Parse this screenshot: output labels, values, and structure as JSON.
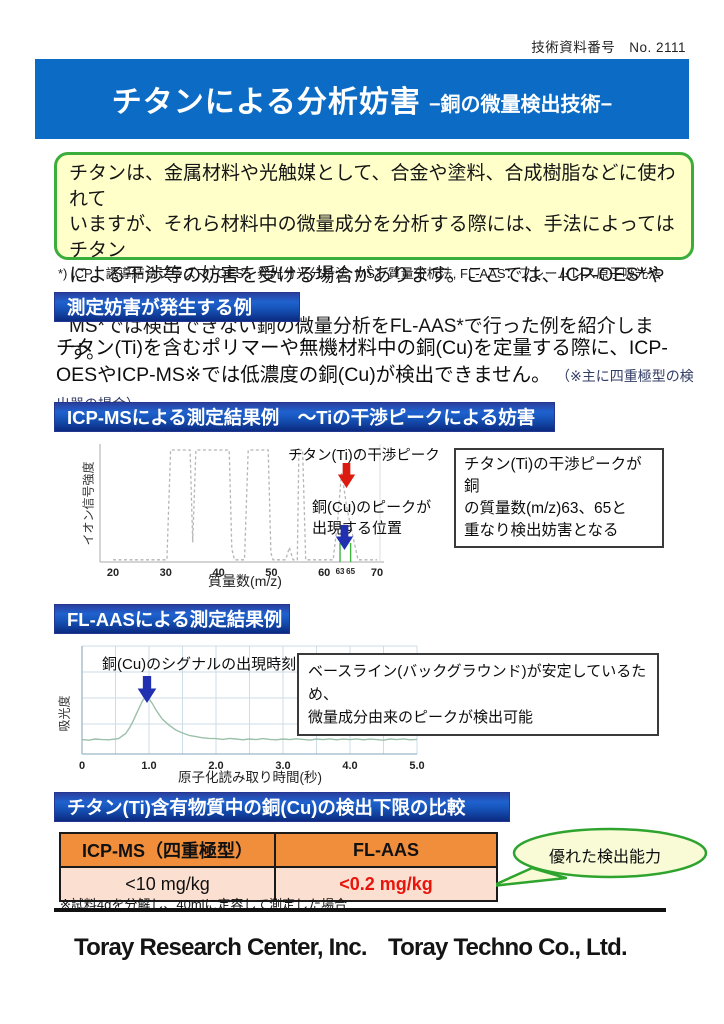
{
  "doc_number": "技術資料番号　No. 2111",
  "title": {
    "main": "チタンによる分析妨害",
    "sub": "−銅の微量検出技術−"
  },
  "intro": {
    "text": "チタンは、金属材料や光触媒として、合金や塗料、合成樹脂などに使われて\nいますが、それら材料中の微量成分を分析する際には、手法によってはチタン\nによる干渉等の妨害を受ける場合があります。ここでは、ICP-OES*や ICP-\nMS*では検出できない銅の微量分析をFL-AAS*で行った例を紹介します。"
  },
  "abbr_note": "*) ICP：誘導結合プラズマ, OES：発光分光分析法, MS：質量分析法, FL-AAS：フレームレス原子吸光法",
  "sections": {
    "example": {
      "header": "測定妨害が発生する例",
      "body": "チタン(Ti)を含むポリマーや無機材料中の銅(Cu)を定量する際に、ICP-OESやICP-MS※では低濃度の銅(Cu)が検出できません。",
      "note": "（※主に四重極型の検出器の場合）"
    },
    "icpms": {
      "header": "ICP-MSによる測定結果例　～Tiの干渉ピークによる妨害",
      "info_box": "チタン(Ti)の干渉ピークが銅\nの質量数(m/z)63、65と\n重なり検出妨害となる"
    },
    "flaas": {
      "header": "FL-AASによる測定結果例",
      "info_box": "ベースライン(バックグラウンド)が安定しているため、\n微量成分由来のピークが検出可能"
    }
  },
  "comparison": {
    "header": "チタン(Ti)含有物質中の銅(Cu)の検出下限の比較",
    "columns": [
      "ICP-MS（四重極型）",
      "FL-AAS"
    ],
    "values": [
      "<10 mg/kg",
      "<0.2 mg/kg"
    ],
    "highlight": "優れた検出能力",
    "footnote": "※試料4gを分解し、40mlに定容して測定した場合"
  },
  "logos": [
    "Toray Research Center, Inc.",
    "Toray Techno Co., Ltd."
  ],
  "colors": {
    "banner_blue": "#0c6cc5",
    "box_yellow": "#ffffc9",
    "green_border": "#3aad3a",
    "table_orange": "#f08e3c",
    "table_peach": "#fbdfd0",
    "red_value": "#e8150d",
    "arrow_red": "#dd1a10",
    "arrow_blue": "#2030b0",
    "trace_gray": "#b5b5b5",
    "trace_green": "#9cc0aa",
    "cu_marker_green": "#3db53d",
    "bubble_fill": "#f8fbd6",
    "bubble_green": "#2ea32e"
  },
  "chart_data": [
    {
      "type": "line",
      "id": "icpms",
      "title": "ICP-MSによる測定結果例",
      "xlabel": "質量数(m/z)",
      "ylabel": "イオン信号強度",
      "xlim": [
        20,
        70
      ],
      "ylim": [
        0,
        100
      ],
      "xticks_major": [
        20,
        30,
        40,
        50,
        60,
        70
      ],
      "xticks_minor": [
        63,
        65
      ],
      "cu_marker_x": [
        63,
        65
      ],
      "grid": false,
      "line_style": "dashed",
      "annotations": {
        "ti_peak": "チタン(Ti)の干渉ピーク",
        "cu_position": "銅(Cu)のピークが\n出現する位置"
      },
      "points": [
        [
          20,
          2
        ],
        [
          30.2,
          2
        ],
        [
          30.9,
          100
        ],
        [
          34.6,
          100
        ],
        [
          35.1,
          18
        ],
        [
          35.7,
          100
        ],
        [
          42.0,
          100
        ],
        [
          42.5,
          12
        ],
        [
          43.0,
          2
        ],
        [
          44.9,
          2
        ],
        [
          45.6,
          100
        ],
        [
          49.4,
          100
        ],
        [
          49.9,
          8
        ],
        [
          50.3,
          2
        ],
        [
          52.7,
          2
        ],
        [
          53.4,
          13
        ],
        [
          54.1,
          2
        ],
        [
          54.9,
          2
        ],
        [
          55.2,
          100
        ],
        [
          55.9,
          100
        ],
        [
          56.5,
          2
        ],
        [
          61.7,
          2
        ],
        [
          62.5,
          35
        ],
        [
          63.3,
          80
        ],
        [
          64.3,
          48
        ],
        [
          65.3,
          26
        ],
        [
          66.4,
          2
        ],
        [
          70,
          2
        ]
      ]
    },
    {
      "type": "line",
      "id": "flaas",
      "title": "FL-AASによる測定結果例",
      "xlabel": "原子化読み取り時間(秒)",
      "ylabel": "吸光度",
      "xlim": [
        0,
        5
      ],
      "ylim": [
        0,
        0.9
      ],
      "xticks": [
        0,
        1,
        2,
        3,
        4,
        5
      ],
      "xtick_labels": [
        "0",
        "1.0",
        "2.0",
        "3.0",
        "4.0",
        "5.0"
      ],
      "grid": true,
      "grid_x_step": 0.5,
      "line_style": "solid",
      "annotations": {
        "cu_signal": "銅(Cu)のシグナルの出現時刻"
      },
      "peak": {
        "x": 0.95,
        "height": 0.48
      },
      "points": [
        [
          0,
          0.12
        ],
        [
          0.1,
          0.115
        ],
        [
          0.2,
          0.125
        ],
        [
          0.3,
          0.12
        ],
        [
          0.4,
          0.118
        ],
        [
          0.5,
          0.125
        ],
        [
          0.55,
          0.13
        ],
        [
          0.6,
          0.15
        ],
        [
          0.65,
          0.17
        ],
        [
          0.7,
          0.21
        ],
        [
          0.75,
          0.26
        ],
        [
          0.8,
          0.32
        ],
        [
          0.85,
          0.38
        ],
        [
          0.9,
          0.44
        ],
        [
          0.95,
          0.48
        ],
        [
          1.0,
          0.46
        ],
        [
          1.05,
          0.42
        ],
        [
          1.1,
          0.37
        ],
        [
          1.15,
          0.33
        ],
        [
          1.2,
          0.29
        ],
        [
          1.3,
          0.24
        ],
        [
          1.4,
          0.2
        ],
        [
          1.5,
          0.175
        ],
        [
          1.6,
          0.155
        ],
        [
          1.7,
          0.145
        ],
        [
          1.8,
          0.135
        ],
        [
          1.9,
          0.13
        ],
        [
          2.0,
          0.128
        ],
        [
          2.1,
          0.122
        ],
        [
          2.2,
          0.13
        ],
        [
          2.3,
          0.125
        ],
        [
          2.4,
          0.118
        ],
        [
          2.5,
          0.125
        ],
        [
          2.6,
          0.12
        ],
        [
          2.7,
          0.128
        ],
        [
          2.8,
          0.122
        ],
        [
          2.9,
          0.118
        ],
        [
          3.0,
          0.125
        ],
        [
          3.1,
          0.12
        ],
        [
          3.2,
          0.127
        ],
        [
          3.3,
          0.122
        ],
        [
          3.4,
          0.116
        ],
        [
          3.5,
          0.124
        ],
        [
          3.6,
          0.12
        ],
        [
          3.7,
          0.126
        ],
        [
          3.8,
          0.118
        ],
        [
          3.9,
          0.124
        ],
        [
          4.0,
          0.12
        ],
        [
          4.1,
          0.126
        ],
        [
          4.2,
          0.118
        ],
        [
          4.3,
          0.124
        ],
        [
          4.4,
          0.12
        ],
        [
          4.5,
          0.115
        ],
        [
          4.6,
          0.125
        ],
        [
          4.7,
          0.12
        ],
        [
          4.8,
          0.126
        ],
        [
          4.9,
          0.118
        ],
        [
          5.0,
          0.122
        ]
      ]
    }
  ]
}
